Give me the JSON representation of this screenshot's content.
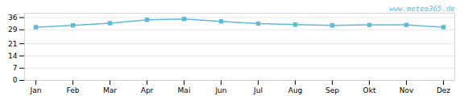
{
  "chart_data": {
    "type": "line",
    "categories": [
      "Jan",
      "Feb",
      "Mar",
      "Apr",
      "Mai",
      "Jun",
      "Jul",
      "Aug",
      "Sep",
      "Okt",
      "Nov",
      "Dez"
    ],
    "values": [
      30.5,
      31.5,
      32.8,
      34.7,
      35.2,
      33.8,
      32.5,
      32.0,
      31.5,
      31.8,
      31.8,
      30.5
    ],
    "color": "#62b8d8",
    "marker": "square",
    "ylim": [
      0,
      38.5
    ],
    "yticks": [
      0,
      7,
      14,
      21,
      29,
      36
    ],
    "grid": true,
    "annotations": [
      {
        "text": "www.meteo365.de",
        "color": "#5abbe0"
      }
    ]
  }
}
